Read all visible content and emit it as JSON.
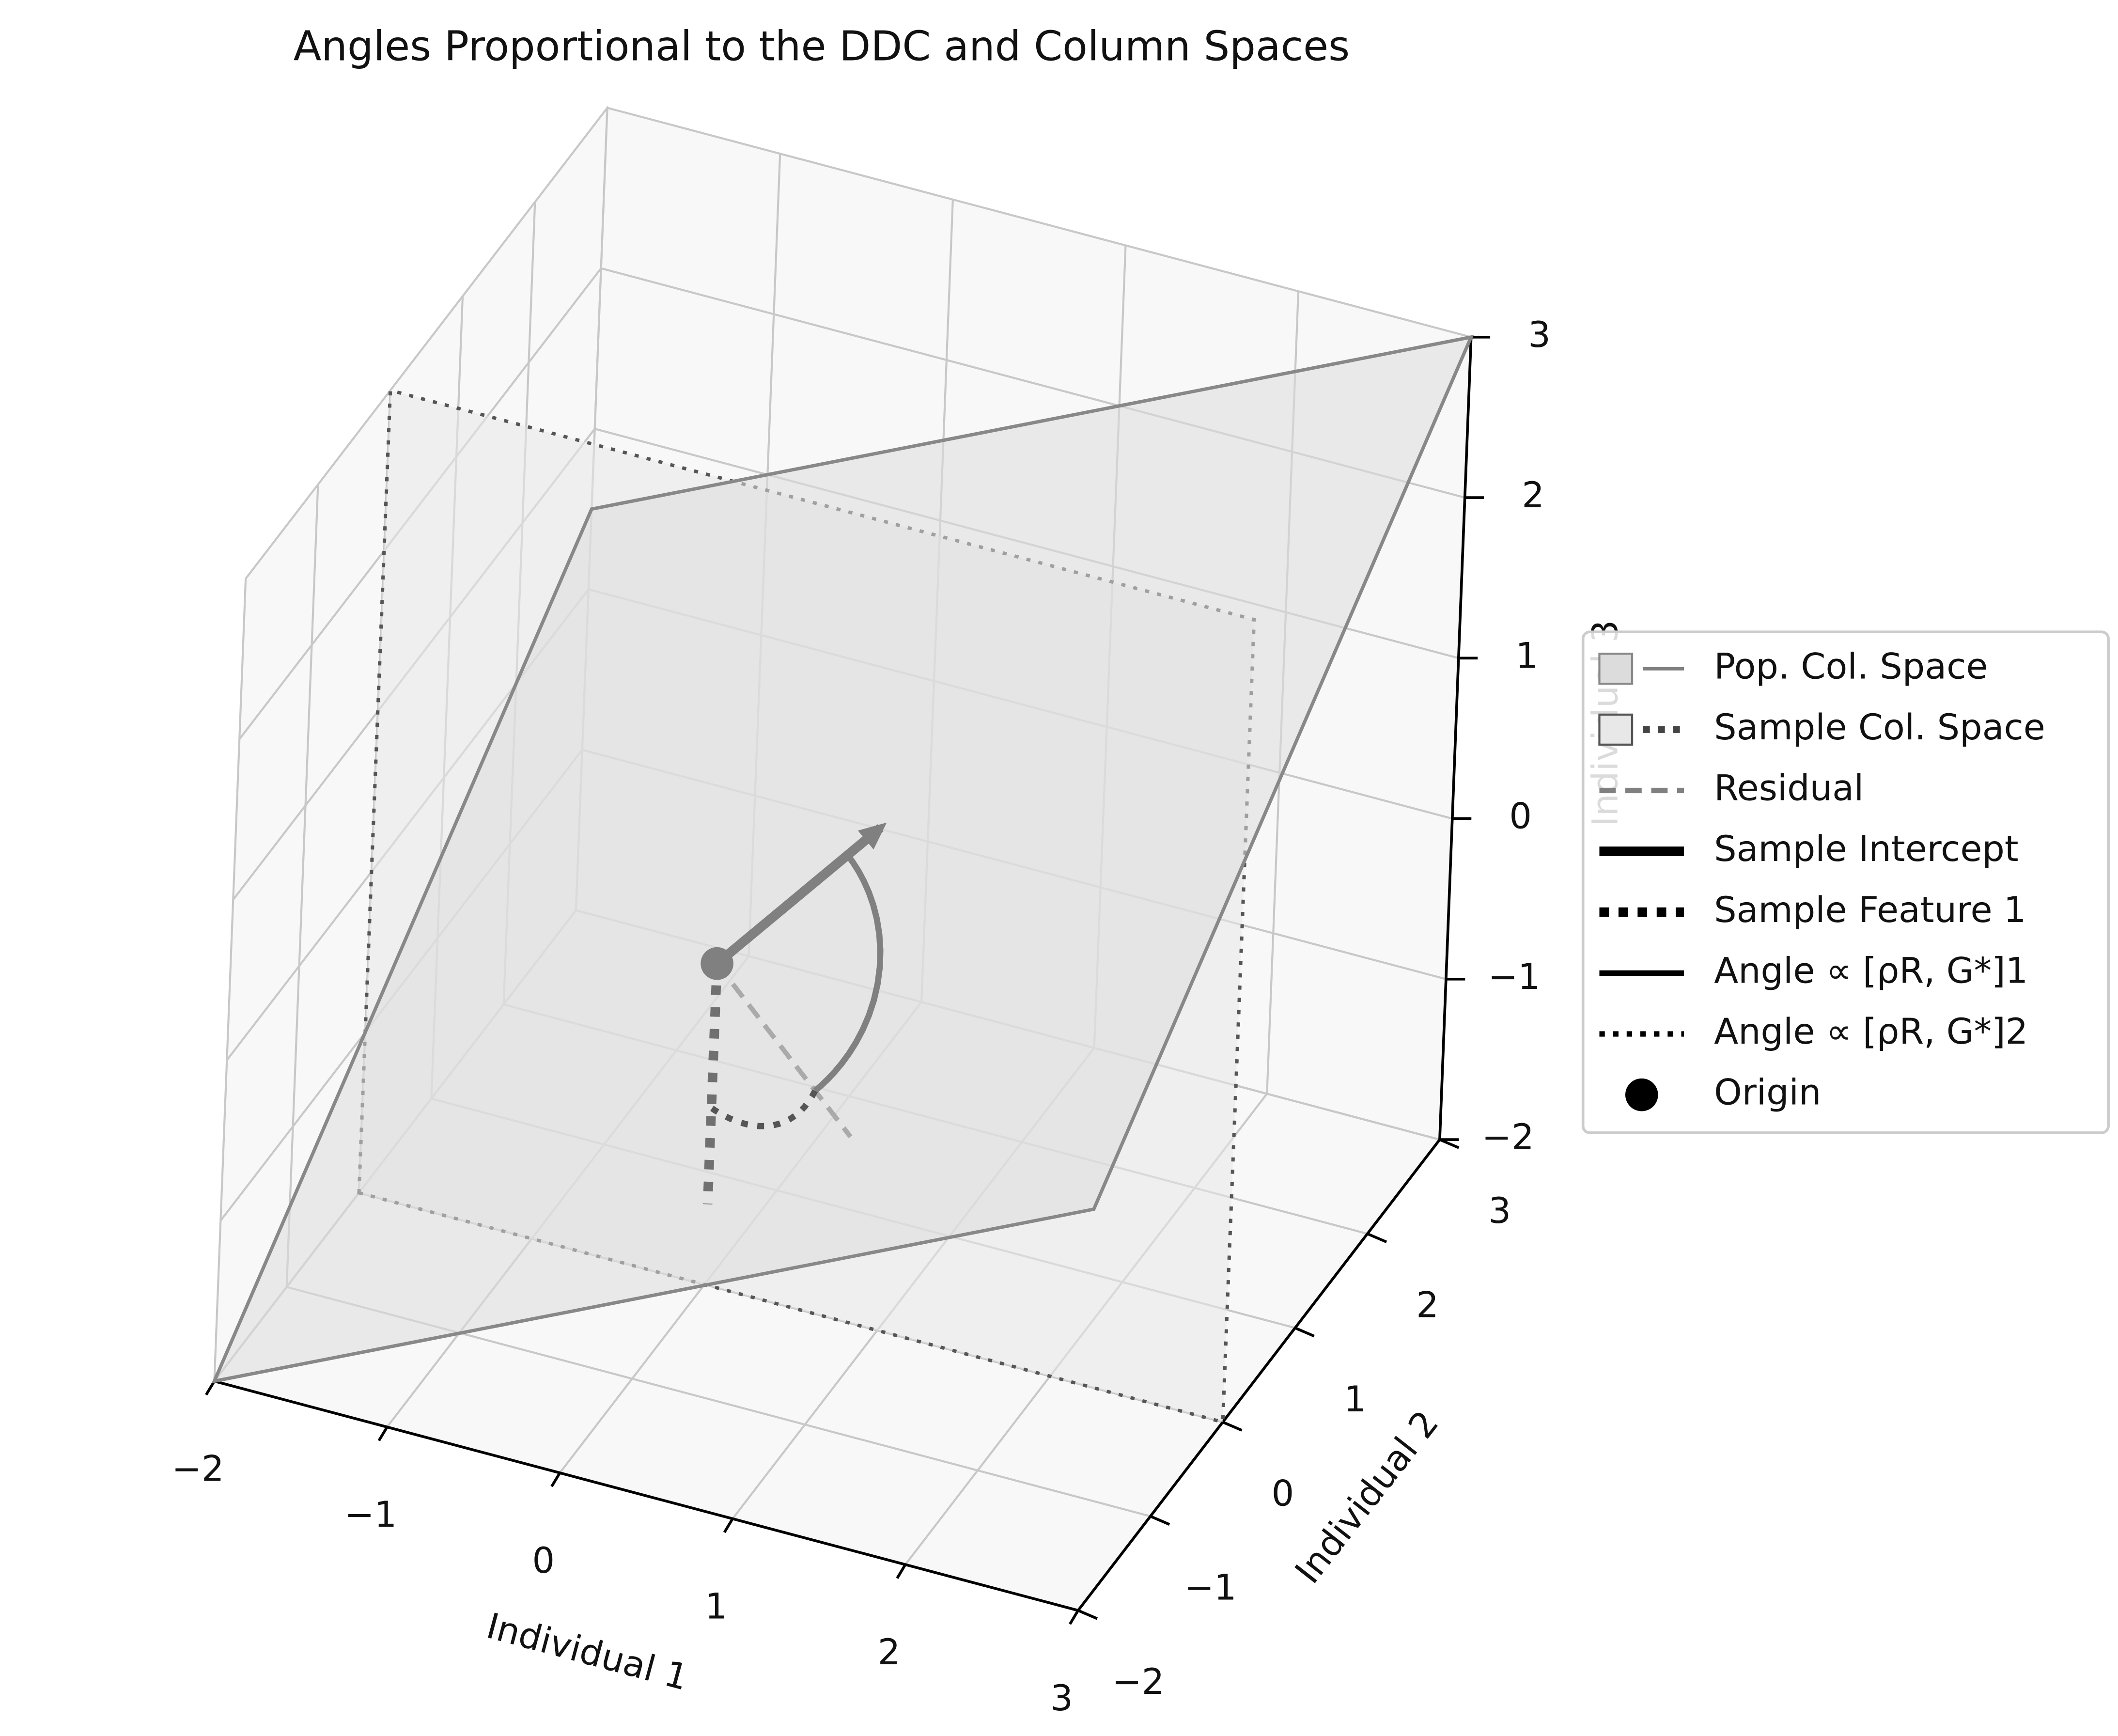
{
  "chart_data": {
    "type": "3d",
    "title": "Angles Proportional to the DDC and Column Spaces",
    "xlabel": "Individual 1",
    "ylabel": "Individual 2",
    "zlabel": "Individual 3",
    "xlim": [
      -2,
      3
    ],
    "ylim": [
      -2,
      3
    ],
    "zlim": [
      -2,
      3
    ],
    "xticks": [
      {
        "value": -2,
        "label": "−2"
      },
      {
        "value": -1,
        "label": "−1"
      },
      0,
      1,
      2,
      3
    ],
    "yticks": [
      {
        "value": -2,
        "label": "−2"
      },
      {
        "value": -1,
        "label": "−1"
      },
      0,
      1,
      2,
      3
    ],
    "zticks": [
      {
        "value": -2,
        "label": "−2"
      },
      {
        "value": -1,
        "label": "−1"
      },
      0,
      1,
      2,
      3
    ],
    "grid": true,
    "pane_color": "#f8f8f8",
    "grid_color": "#c8c8c8",
    "legend": "right",
    "surfaces": [
      {
        "name": "Pop. Col. Space",
        "color": "#dcdcdc",
        "edge_color": "#888888",
        "linestyle": "solid",
        "legend_color": "#808080",
        "vertices": [
          [
            -2,
            -2,
            -2
          ],
          [
            3,
            -2,
            0.5
          ],
          [
            3,
            3,
            3
          ],
          [
            -2,
            3,
            0.5
          ]
        ]
      },
      {
        "name": "Sample Col. Space",
        "color": "#e8e8e8",
        "edge_color": "#555555",
        "linestyle": "dotted",
        "legend_color": "#444444",
        "vertices": [
          [
            -2,
            0,
            -2
          ],
          [
            3,
            0,
            -2
          ],
          [
            3,
            0,
            3
          ],
          [
            -2,
            0,
            3
          ]
        ]
      }
    ],
    "vectors": [
      {
        "name": "Residual",
        "color": "#aaaaaa",
        "linestyle": "dashed",
        "legend_color": "#808080",
        "start": [
          0,
          0,
          0
        ],
        "end": [
          1,
          -0.5,
          -0.5
        ]
      },
      {
        "name": "Sample Intercept",
        "color": "#808080",
        "linestyle": "solid",
        "legend_color": "#000000",
        "start": [
          0,
          0,
          0
        ],
        "end": [
          0.65,
          0.65,
          0.65
        ]
      },
      {
        "name": "Sample Feature 1",
        "color": "#707070",
        "linestyle": "dotted",
        "legend_color": "#000000",
        "start": [
          0,
          0,
          0
        ],
        "end": [
          0,
          0,
          -1.5
        ]
      }
    ],
    "arcs": [
      {
        "name": "Angle ∝ [ρR, G*]1",
        "color": "#808080",
        "linestyle": "solid",
        "legend_color": "#000000",
        "from": [
          0.65,
          0.65,
          0.65
        ],
        "to": [
          1,
          -0.5,
          -0.5
        ]
      },
      {
        "name": "Angle ∝ [ρR, G*]2",
        "color": "#555555",
        "linestyle": "dotted",
        "legend_color": "#000000",
        "from": [
          1,
          -0.5,
          -0.5
        ],
        "to": [
          0,
          0,
          -1.5
        ]
      }
    ],
    "origin": {
      "name": "Origin",
      "point": [
        0,
        0,
        0
      ],
      "color": "#808080",
      "legend_color": "#000000"
    }
  }
}
